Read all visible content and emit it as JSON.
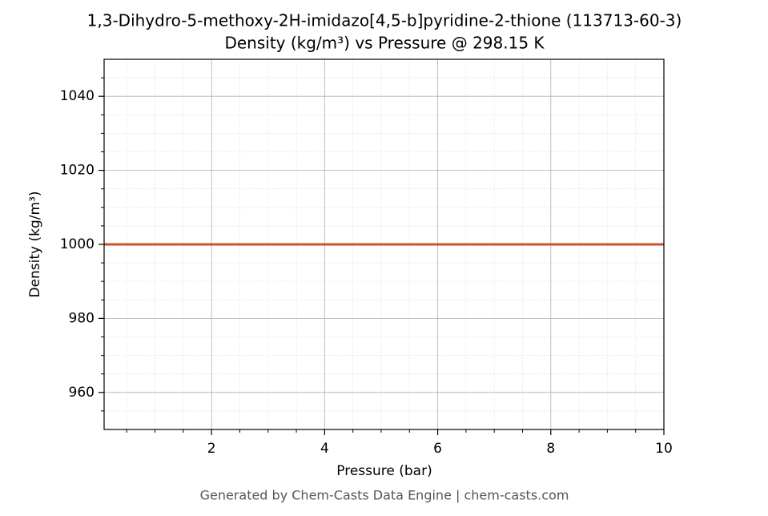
{
  "chart_data": {
    "type": "line",
    "title": "1,3-Dihydro-5-methoxy-2H-imidazo[4,5-b]pyridine-2-thione (113713-60-3)",
    "subtitle": "Density (kg/m³) vs Pressure @ 298.15 K",
    "x_label": "Pressure (bar)",
    "y_label": "Density (kg/m³)",
    "footer": "Generated by Chem-Casts Data Engine | chem-casts.com",
    "x": [
      0.1,
      10
    ],
    "series": [
      {
        "name": "Density",
        "color": "#c8552a",
        "values": [
          1000,
          1000
        ]
      }
    ],
    "xlim": [
      0.1,
      10
    ],
    "xticks": [
      2,
      4,
      6,
      8,
      10
    ],
    "xticks_minor": [
      0.5,
      1,
      1.5,
      2.5,
      3,
      3.5,
      4.5,
      5,
      5.5,
      6.5,
      7,
      7.5,
      8.5,
      9,
      9.5
    ],
    "ylim": [
      950,
      1050
    ],
    "yticks": [
      960,
      980,
      1000,
      1020,
      1040
    ],
    "yticks_minor": [
      955,
      965,
      970,
      975,
      985,
      990,
      995,
      1005,
      1010,
      1015,
      1025,
      1030,
      1035,
      1045
    ],
    "grid": true
  }
}
